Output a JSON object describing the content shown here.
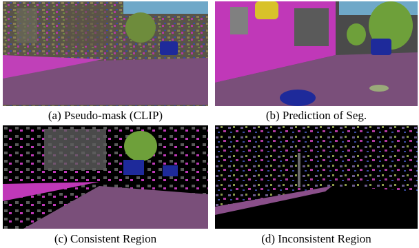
{
  "figure": {
    "panels": [
      {
        "caption": "(a) Pseudo-mask (CLIP)"
      },
      {
        "caption": "(b) Prediction of Seg."
      },
      {
        "caption": "(c) Consistent Region"
      },
      {
        "caption": "(d) Inconsistent Region"
      }
    ]
  }
}
